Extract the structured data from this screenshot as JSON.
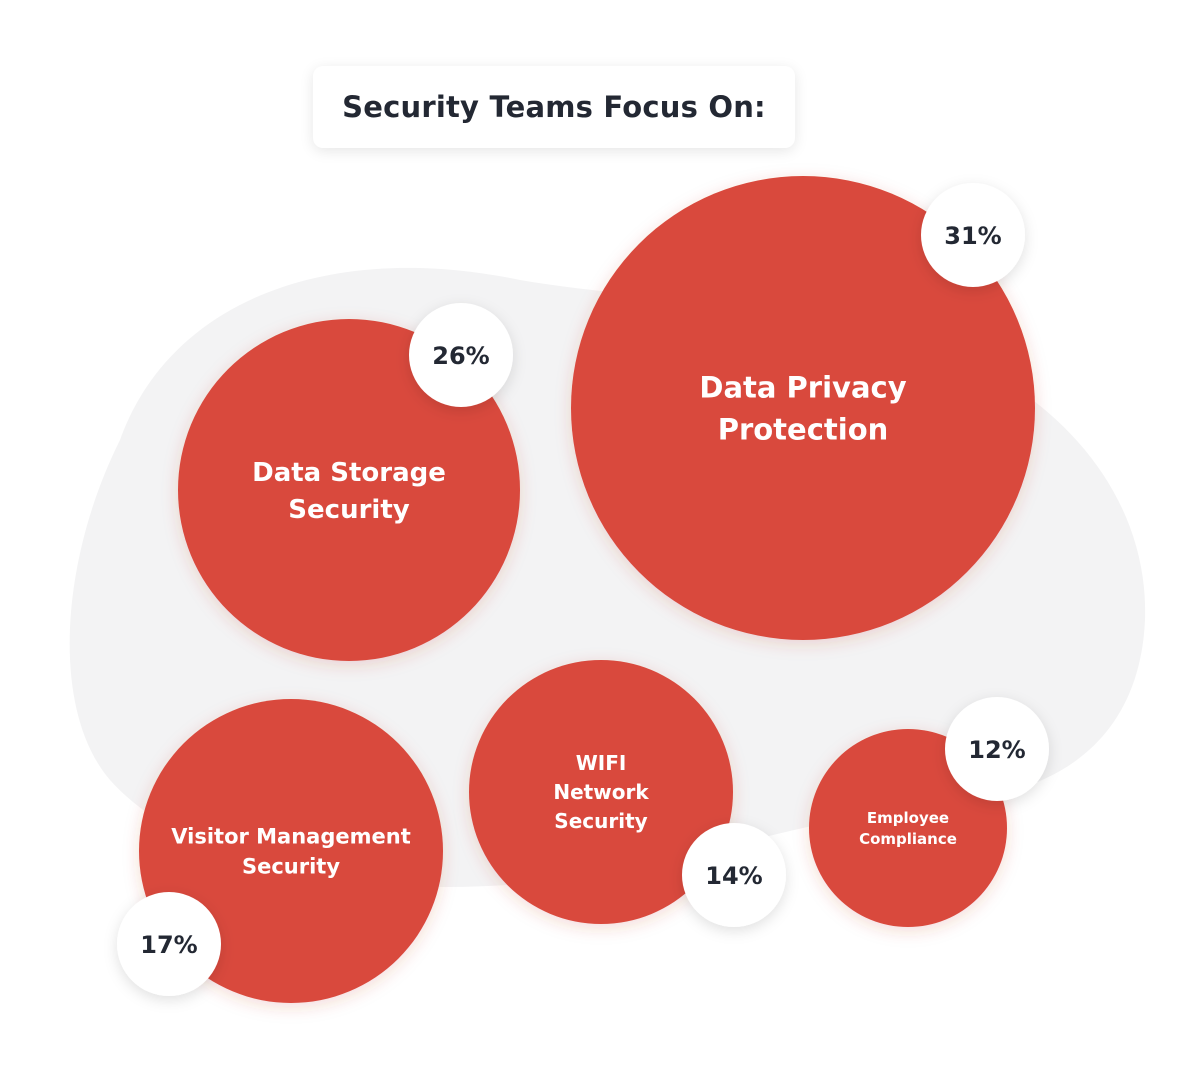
{
  "title": "Security Teams Focus On:",
  "colors": {
    "bubble": "#d9483e",
    "badge": "#ffffff",
    "badge_text": "#232833",
    "blob": "#f3f3f4"
  },
  "chart_data": {
    "type": "bubble",
    "title": "Security Teams Focus On:",
    "unit": "%",
    "items": [
      {
        "label_lines": [
          "Data Privacy",
          "Protection"
        ],
        "value": 31,
        "value_label": "31%"
      },
      {
        "label_lines": [
          "Data Storage",
          "Security"
        ],
        "value": 26,
        "value_label": "26%"
      },
      {
        "label_lines": [
          "Visitor Management",
          "Security"
        ],
        "value": 17,
        "value_label": "17%"
      },
      {
        "label_lines": [
          "WIFI",
          "Network",
          "Security"
        ],
        "value": 14,
        "value_label": "14%"
      },
      {
        "label_lines": [
          "Employee",
          "Compliance"
        ],
        "value": 12,
        "value_label": "12%"
      }
    ]
  }
}
